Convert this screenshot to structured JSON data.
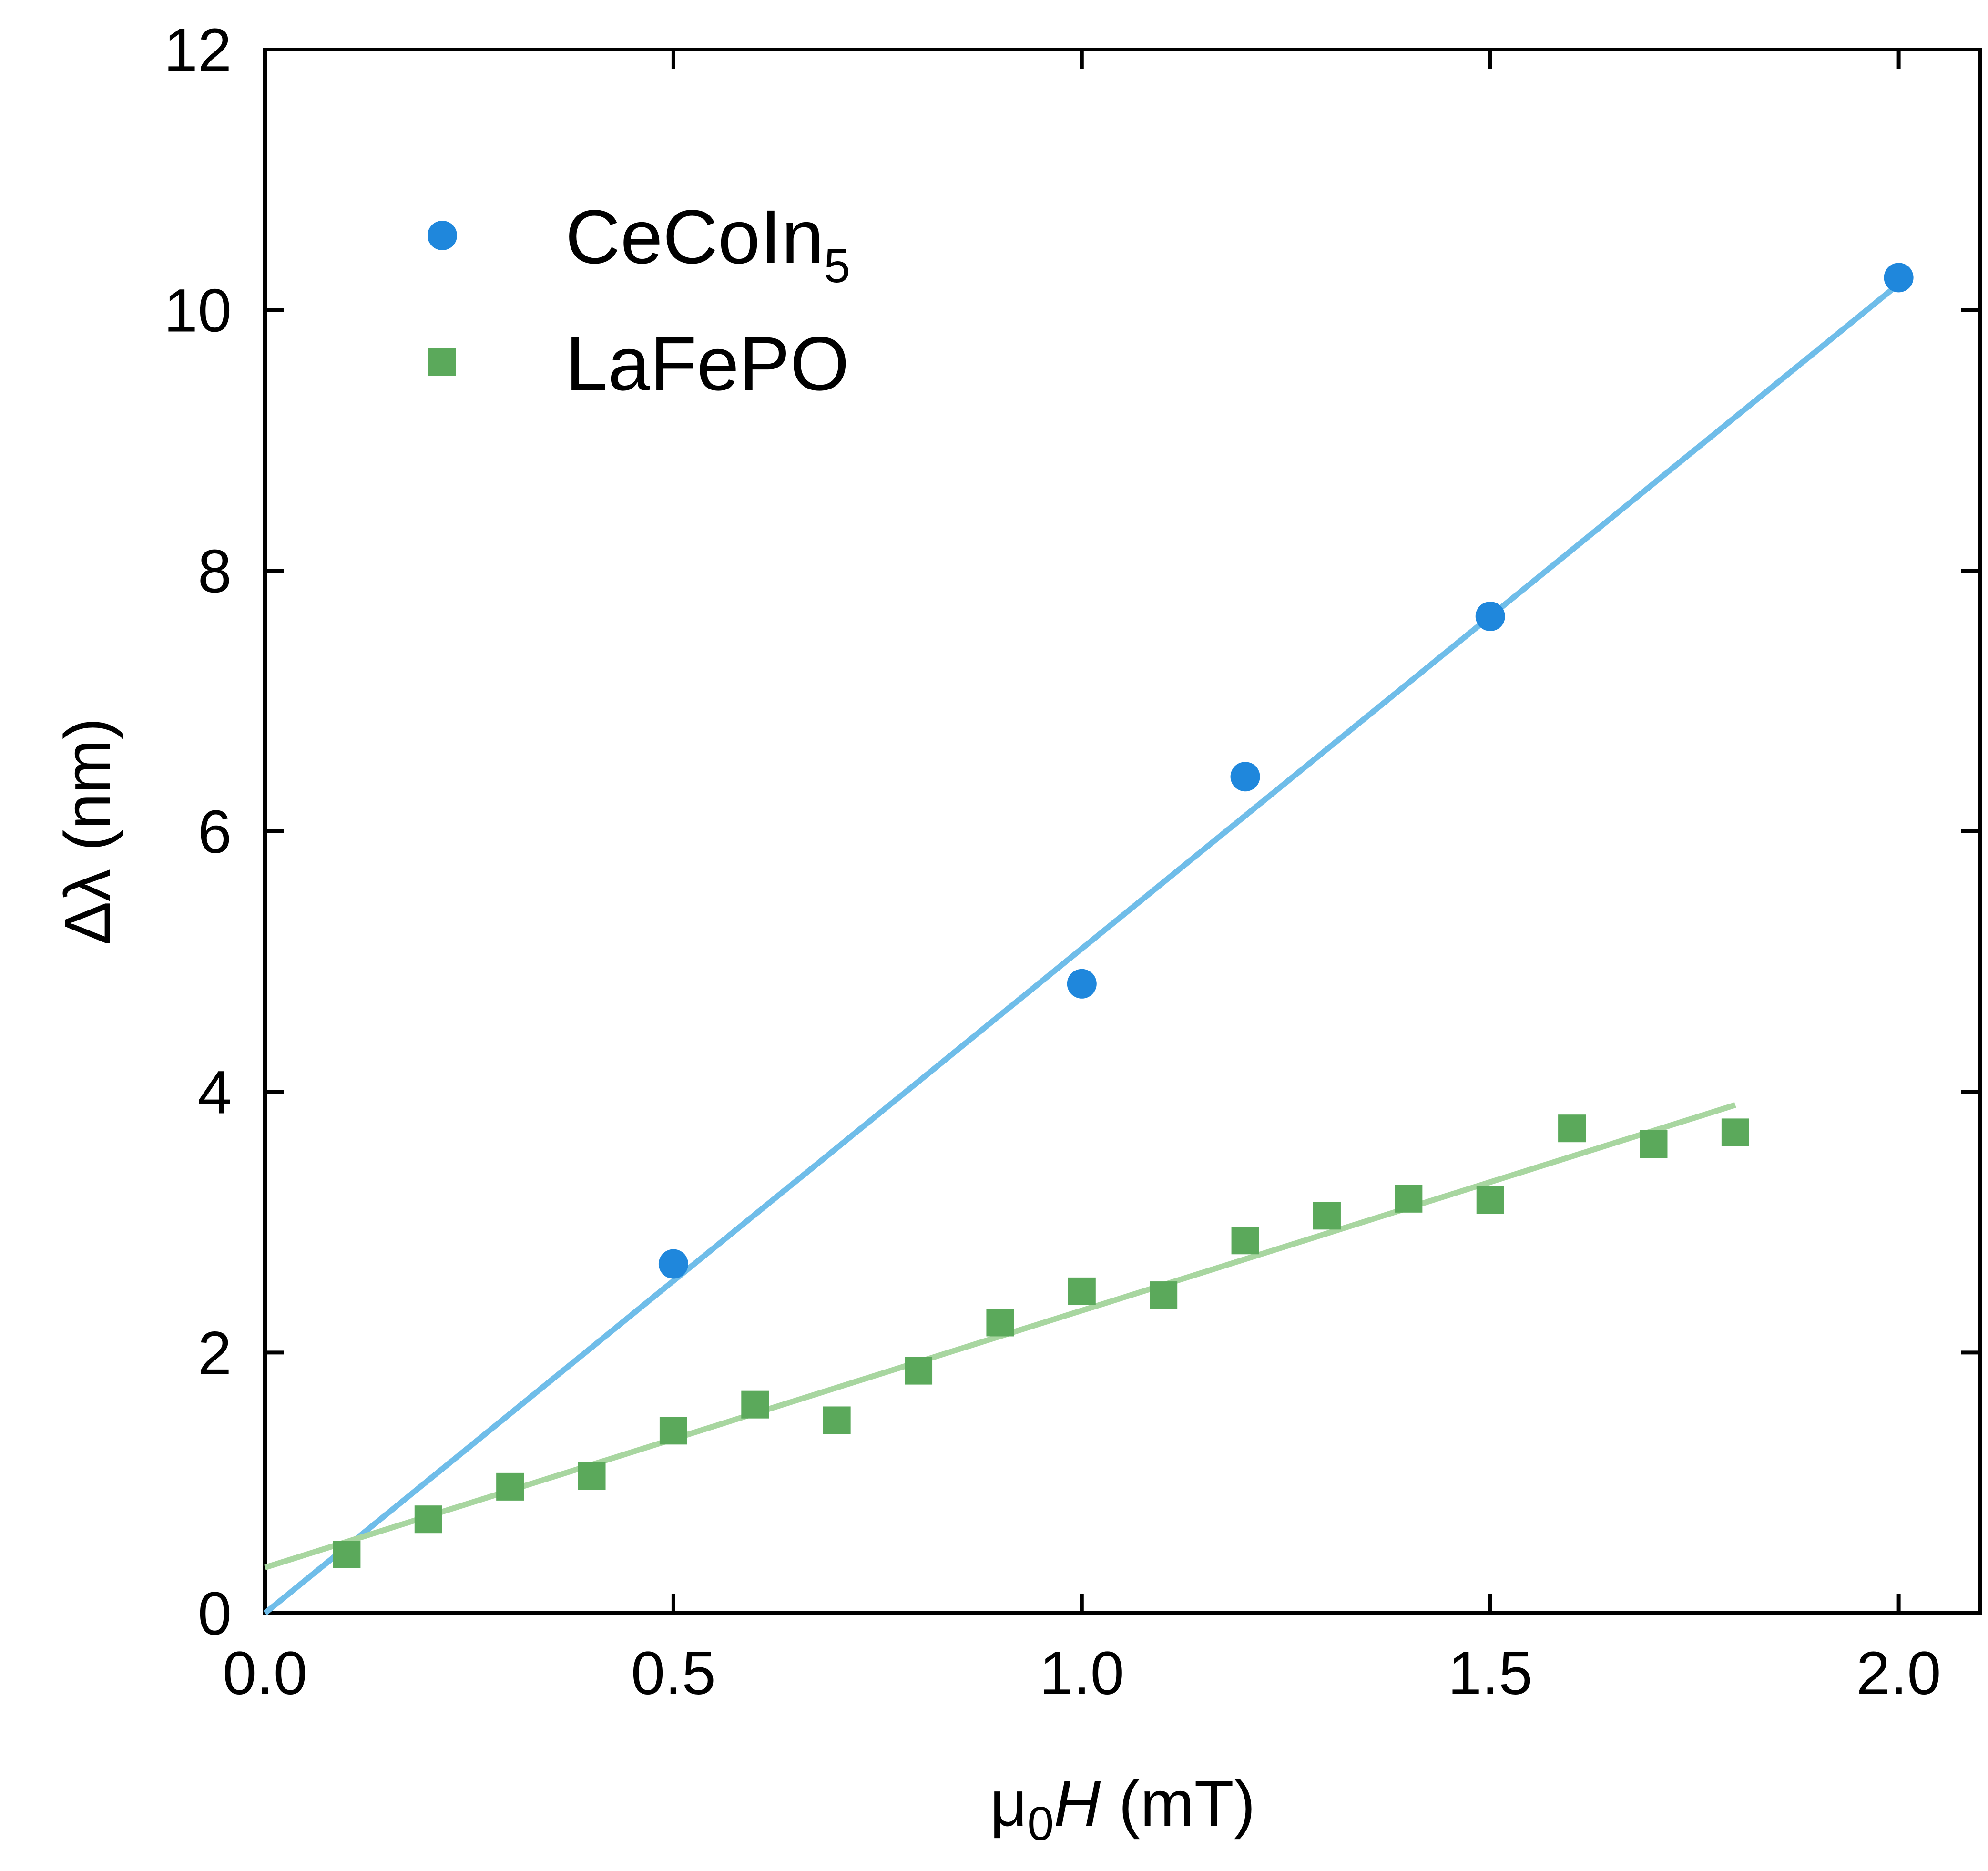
{
  "chart_data": {
    "type": "scatter",
    "xlabel_parts": {
      "symbol": "μ",
      "sub": "0",
      "var": "H",
      "unit": " (mT)"
    },
    "ylabel": "Δλ (nm)",
    "xlim": [
      0.0,
      2.1
    ],
    "ylim": [
      0,
      12
    ],
    "xticks": [
      "0.0",
      "0.5",
      "1.0",
      "1.5",
      "2.0"
    ],
    "xtick_values": [
      0.0,
      0.5,
      1.0,
      1.5,
      2.0
    ],
    "yticks": [
      "0",
      "2",
      "4",
      "6",
      "8",
      "10",
      "12"
    ],
    "ytick_values": [
      0,
      2,
      4,
      6,
      8,
      10,
      12
    ],
    "legend_position": "top-left",
    "series": [
      {
        "name": "CeCoIn",
        "name_sub": "5",
        "marker": "circle",
        "color": "#1f87dc",
        "fit_color": "#6fbde9",
        "x": [
          0.5,
          1.0,
          1.2,
          1.5,
          2.0
        ],
        "y": [
          2.68,
          4.83,
          6.42,
          7.65,
          10.25
        ],
        "fit": {
          "x": [
            0.0,
            2.0
          ],
          "y": [
            0.0,
            10.2
          ]
        }
      },
      {
        "name": "LaFePO",
        "marker": "square",
        "color": "#5ba95b",
        "fit_color": "#a8d6a0",
        "x": [
          0.1,
          0.2,
          0.3,
          0.4,
          0.5,
          0.6,
          0.7,
          0.8,
          0.9,
          1.0,
          1.1,
          1.2,
          1.3,
          1.4,
          1.5,
          1.6,
          1.7,
          1.8
        ],
        "y": [
          0.45,
          0.72,
          0.97,
          1.05,
          1.4,
          1.6,
          1.48,
          1.86,
          2.23,
          2.47,
          2.44,
          2.86,
          3.05,
          3.18,
          3.17,
          3.72,
          3.6,
          3.69
        ],
        "fit": {
          "x": [
            0.0,
            1.8
          ],
          "y": [
            0.35,
            3.9
          ]
        }
      }
    ]
  }
}
